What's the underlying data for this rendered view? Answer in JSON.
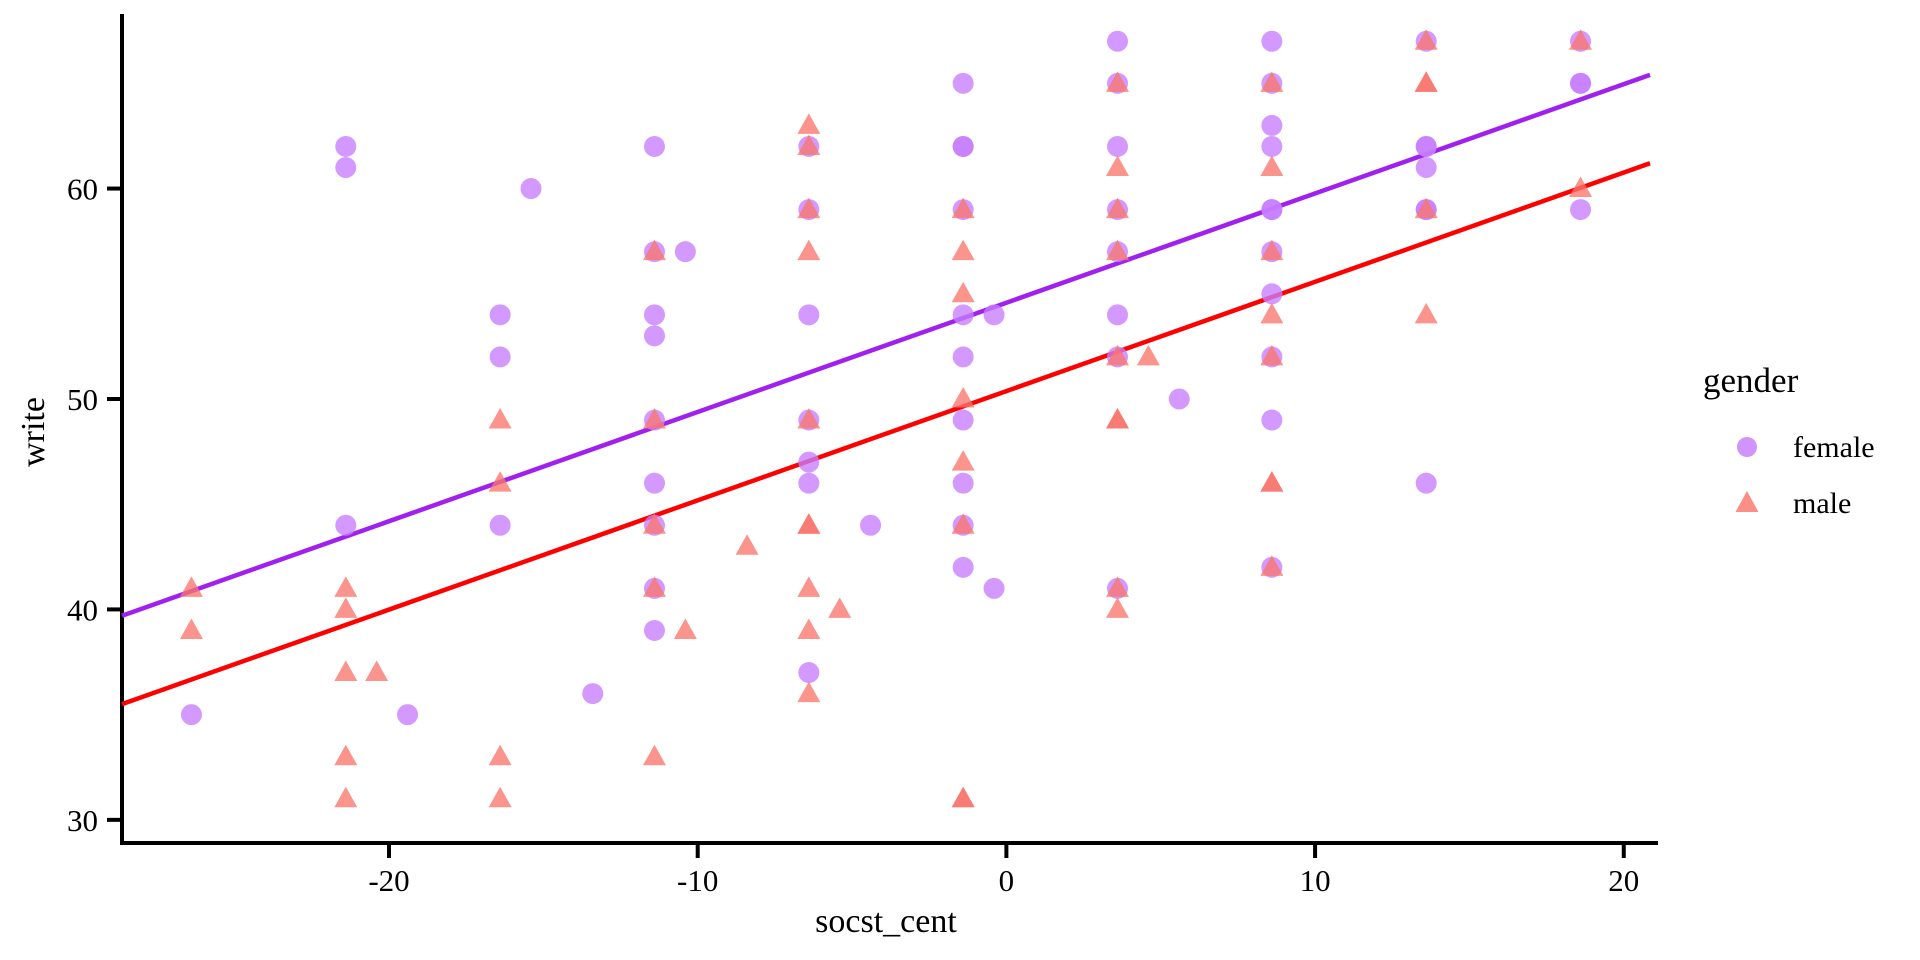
{
  "chart_data": {
    "type": "scatter",
    "title": "",
    "xlabel": "socst_cent",
    "ylabel": "write",
    "x_ticks": [
      -20,
      -10,
      0,
      10,
      20
    ],
    "y_ticks": [
      30,
      40,
      50,
      60
    ],
    "xlim": [
      -28.65,
      20.85
    ],
    "ylim": [
      28.9,
      68.2
    ],
    "grid": false,
    "point_opacity": 0.78,
    "legend": {
      "title": "gender",
      "position": "right",
      "entries": [
        {
          "label": "female",
          "marker": "circle",
          "color": "#C77CFF"
        },
        {
          "label": "male",
          "marker": "triangle",
          "color": "#F8766D"
        }
      ]
    },
    "series": [
      {
        "name": "female",
        "marker": "circle",
        "color": "#C77CFF",
        "points": [
          [
            -26.4,
            35
          ],
          [
            -21.4,
            62
          ],
          [
            -21.4,
            61
          ],
          [
            -21.4,
            44
          ],
          [
            -19.4,
            35
          ],
          [
            -16.4,
            54
          ],
          [
            -16.4,
            52
          ],
          [
            -16.4,
            44
          ],
          [
            -15.4,
            60
          ],
          [
            -13.4,
            36
          ],
          [
            -11.4,
            62
          ],
          [
            -11.4,
            57
          ],
          [
            -11.4,
            54
          ],
          [
            -11.4,
            53
          ],
          [
            -11.4,
            49
          ],
          [
            -11.4,
            46
          ],
          [
            -11.4,
            44
          ],
          [
            -11.4,
            41
          ],
          [
            -11.4,
            39
          ],
          [
            -10.4,
            57
          ],
          [
            -6.4,
            62
          ],
          [
            -6.4,
            59
          ],
          [
            -6.4,
            54
          ],
          [
            -6.4,
            49
          ],
          [
            -6.4,
            47
          ],
          [
            -6.4,
            46
          ],
          [
            -6.4,
            37
          ],
          [
            -4.4,
            44
          ],
          [
            -1.4,
            65
          ],
          [
            -1.4,
            62
          ],
          [
            -1.4,
            62
          ],
          [
            -1.4,
            59
          ],
          [
            -1.4,
            54
          ],
          [
            -1.4,
            52
          ],
          [
            -1.4,
            49
          ],
          [
            -1.4,
            46
          ],
          [
            -1.4,
            44
          ],
          [
            -1.4,
            42
          ],
          [
            -0.4,
            54
          ],
          [
            -0.4,
            41
          ],
          [
            3.6,
            67
          ],
          [
            3.6,
            65
          ],
          [
            3.6,
            62
          ],
          [
            3.6,
            59
          ],
          [
            3.6,
            57
          ],
          [
            3.6,
            54
          ],
          [
            3.6,
            52
          ],
          [
            3.6,
            41
          ],
          [
            5.6,
            50
          ],
          [
            8.6,
            67
          ],
          [
            8.6,
            65
          ],
          [
            8.6,
            63
          ],
          [
            8.6,
            62
          ],
          [
            8.6,
            59
          ],
          [
            8.6,
            59
          ],
          [
            8.6,
            57
          ],
          [
            8.6,
            55
          ],
          [
            8.6,
            52
          ],
          [
            8.6,
            49
          ],
          [
            8.6,
            42
          ],
          [
            13.6,
            67
          ],
          [
            13.6,
            62
          ],
          [
            13.6,
            62
          ],
          [
            13.6,
            61
          ],
          [
            13.6,
            59
          ],
          [
            13.6,
            59
          ],
          [
            13.6,
            46
          ],
          [
            18.6,
            67
          ],
          [
            18.6,
            65
          ],
          [
            18.6,
            65
          ],
          [
            18.6,
            59
          ]
        ]
      },
      {
        "name": "male",
        "marker": "triangle",
        "color": "#F8766D",
        "points": [
          [
            -26.4,
            41
          ],
          [
            -26.4,
            39
          ],
          [
            -21.4,
            41
          ],
          [
            -21.4,
            40
          ],
          [
            -21.4,
            37
          ],
          [
            -21.4,
            33
          ],
          [
            -21.4,
            31
          ],
          [
            -20.4,
            37
          ],
          [
            -16.4,
            49
          ],
          [
            -16.4,
            46
          ],
          [
            -16.4,
            33
          ],
          [
            -16.4,
            31
          ],
          [
            -11.4,
            57
          ],
          [
            -11.4,
            49
          ],
          [
            -11.4,
            44
          ],
          [
            -11.4,
            41
          ],
          [
            -11.4,
            33
          ],
          [
            -10.4,
            39
          ],
          [
            -8.4,
            43
          ],
          [
            -6.4,
            63
          ],
          [
            -6.4,
            62
          ],
          [
            -6.4,
            59
          ],
          [
            -6.4,
            57
          ],
          [
            -6.4,
            49
          ],
          [
            -6.4,
            44
          ],
          [
            -6.4,
            44
          ],
          [
            -6.4,
            41
          ],
          [
            -6.4,
            39
          ],
          [
            -6.4,
            36
          ],
          [
            -5.4,
            40
          ],
          [
            -1.4,
            59
          ],
          [
            -1.4,
            57
          ],
          [
            -1.4,
            55
          ],
          [
            -1.4,
            50
          ],
          [
            -1.4,
            47
          ],
          [
            -1.4,
            44
          ],
          [
            -1.4,
            31
          ],
          [
            -1.4,
            31
          ],
          [
            3.6,
            65
          ],
          [
            3.6,
            61
          ],
          [
            3.6,
            59
          ],
          [
            3.6,
            57
          ],
          [
            3.6,
            52
          ],
          [
            3.6,
            49
          ],
          [
            3.6,
            49
          ],
          [
            3.6,
            41
          ],
          [
            3.6,
            40
          ],
          [
            4.6,
            52
          ],
          [
            8.6,
            65
          ],
          [
            8.6,
            61
          ],
          [
            8.6,
            57
          ],
          [
            8.6,
            54
          ],
          [
            8.6,
            52
          ],
          [
            8.6,
            46
          ],
          [
            8.6,
            46
          ],
          [
            8.6,
            42
          ],
          [
            13.6,
            67
          ],
          [
            13.6,
            65
          ],
          [
            13.6,
            65
          ],
          [
            13.6,
            59
          ],
          [
            13.6,
            54
          ],
          [
            18.6,
            67
          ],
          [
            18.6,
            60
          ]
        ]
      }
    ],
    "trend_lines": [
      {
        "name": "female",
        "color": "#A020F0",
        "x1": -28.65,
        "y1": 39.7,
        "x2": 20.85,
        "y2": 65.4
      },
      {
        "name": "male",
        "color": "#FF0000",
        "x1": -28.65,
        "y1": 35.5,
        "x2": 20.85,
        "y2": 61.2
      }
    ],
    "axis_color": "#000000",
    "background": "#FFFFFF"
  }
}
